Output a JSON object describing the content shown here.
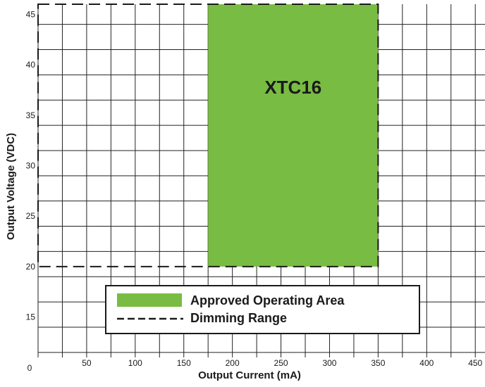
{
  "chart_data": {
    "type": "area",
    "title": "",
    "xlabel": "Output Current (mA)",
    "ylabel": "Output Voltage (VDC)",
    "xlim": [
      0,
      460
    ],
    "ylim": [
      11,
      46
    ],
    "x_ticks": [
      {
        "value": 0,
        "label": "0"
      },
      {
        "value": 50,
        "label": "50"
      },
      {
        "value": 100,
        "label": "100"
      },
      {
        "value": 150,
        "label": "150"
      },
      {
        "value": 200,
        "label": "200"
      },
      {
        "value": 250,
        "label": "250"
      },
      {
        "value": 300,
        "label": "300"
      },
      {
        "value": 350,
        "label": "350"
      },
      {
        "value": 400,
        "label": "400"
      },
      {
        "value": 450,
        "label": "450"
      }
    ],
    "y_ticks": [
      {
        "value": 15,
        "label": "15"
      },
      {
        "value": 20,
        "label": "20"
      },
      {
        "value": 25,
        "label": "25"
      },
      {
        "value": 30,
        "label": "30"
      },
      {
        "value": 35,
        "label": "35"
      },
      {
        "value": 40,
        "label": "40"
      },
      {
        "value": 45,
        "label": "45"
      }
    ],
    "grid": true,
    "grid_step_x": 25,
    "grid_step_y": 2.5,
    "regions": [
      {
        "name": "Approved Operating Area",
        "label": "XTC16",
        "x_range": [
          175,
          350
        ],
        "y_range": [
          20,
          46
        ],
        "color": "#79bc43"
      },
      {
        "name": "Dimming Range",
        "x_range": [
          0,
          350
        ],
        "y_range": [
          20,
          46
        ],
        "style": "dashed",
        "color": "#1a1a1a"
      }
    ],
    "legend": {
      "position": "bottom-center",
      "entries": [
        {
          "label": "Approved Operating Area",
          "kind": "swatch",
          "color": "#79bc43"
        },
        {
          "label": "Dimming Range",
          "kind": "dashed-line",
          "color": "#1a1a1a"
        }
      ]
    }
  }
}
